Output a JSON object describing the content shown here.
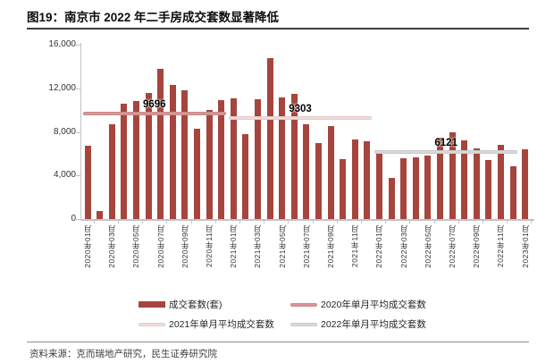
{
  "figure": {
    "title": "图19：南京市 2022 年二手房成交套数显著降低",
    "source": "资料来源：克而瑞地产研究，民生证券研究院"
  },
  "colors": {
    "bar": "#A5453E",
    "avg_2020": "#D99694",
    "avg_2021": "#F2DCDB",
    "avg_2022": "#D9D9D9"
  },
  "legend": [
    {
      "label": "成交套数(套)",
      "type": "bar",
      "color_key": "bar"
    },
    {
      "label": "2020年单月平均成交套数",
      "type": "line",
      "color_key": "avg_2020"
    },
    {
      "label": "2021年单月平均成交套数",
      "type": "line",
      "color_key": "avg_2021"
    },
    {
      "label": "2022年单月平均成交套数",
      "type": "line",
      "color_key": "avg_2022"
    }
  ],
  "chart_data": {
    "type": "bar",
    "title": "图19：南京市 2022 年二手房成交套数显著降低",
    "xlabel": "",
    "ylabel": "",
    "ylim": [
      0,
      16000
    ],
    "grid": false,
    "legend_position": "bottom",
    "x_tick_rotation_deg": 90,
    "categories": [
      "2020年01月",
      "2020年02月",
      "2020年03月",
      "2020年04月",
      "2020年05月",
      "2020年06月",
      "2020年07月",
      "2020年08月",
      "2020年09月",
      "2020年10月",
      "2020年11月",
      "2020年12月",
      "2021年01月",
      "2021年02月",
      "2021年03月",
      "2021年04月",
      "2021年05月",
      "2021年06月",
      "2021年07月",
      "2021年08月",
      "2021年09月",
      "2021年10月",
      "2021年11月",
      "2021年12月",
      "2022年01月",
      "2022年02月",
      "2022年03月",
      "2022年04月",
      "2022年05月",
      "2022年06月",
      "2022年07月",
      "2022年08月",
      "2022年09月",
      "2022年10月",
      "2022年11月",
      "2022年12月",
      "2023年01月"
    ],
    "values": [
      6700,
      700,
      8700,
      10600,
      10800,
      11600,
      13800,
      12300,
      11800,
      8300,
      10000,
      10900,
      11100,
      7800,
      11000,
      14800,
      11200,
      11500,
      8700,
      7000,
      8500,
      5500,
      7300,
      7100,
      6000,
      3800,
      5600,
      5700,
      5800,
      7500,
      7950,
      7200,
      6500,
      5400,
      6850,
      4850,
      6400
    ],
    "series_name": "成交套数(套)",
    "y_ticks": [
      {
        "label": "0",
        "value": 0
      },
      {
        "label": "4,000",
        "value": 4000
      },
      {
        "label": "8,000",
        "value": 8000
      },
      {
        "label": "12,000",
        "value": 12000
      },
      {
        "label": "16,000",
        "value": 16000
      }
    ],
    "x_tick_labels": [
      "2020年01月",
      "2020年03月",
      "2020年05月",
      "2020年07月",
      "2020年09月",
      "2020年11月",
      "2021年01月",
      "2021年03月",
      "2021年05月",
      "2021年07月",
      "2021年09月",
      "2021年11月",
      "2022年01月",
      "2022年03月",
      "2022年05月",
      "2022年07月",
      "2022年09月",
      "2022年11月",
      "2023年01月"
    ],
    "avg_lines": [
      {
        "year": "2020",
        "name": "2020年单月平均成交套数",
        "label": "9696",
        "value": 9696,
        "start_index": 0,
        "end_index": 11,
        "color": "#D99694"
      },
      {
        "year": "2021",
        "name": "2021年单月平均成交套数",
        "label": "9303",
        "value": 9303,
        "start_index": 12,
        "end_index": 23,
        "color": "#F2DCDB"
      },
      {
        "year": "2022",
        "name": "2022年单月平均成交套数",
        "label": "6121",
        "value": 6121,
        "start_index": 24,
        "end_index": 35,
        "color": "#D9D9D9"
      }
    ]
  }
}
